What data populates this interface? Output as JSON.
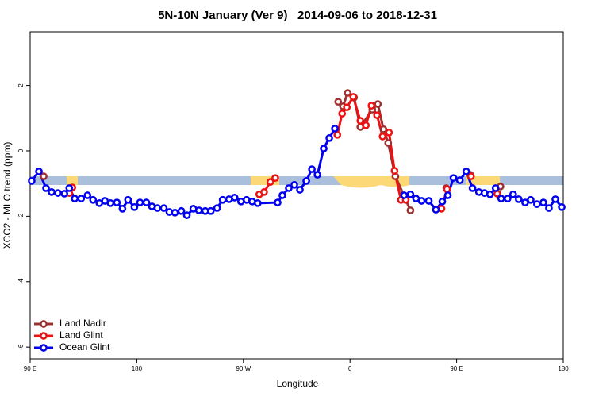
{
  "chart_data": {
    "type": "line",
    "title": "5N-10N January (Ver 9)   2014-09-06 to 2018-12-31",
    "x_label": "Longitude",
    "y_label": "XCO2 - MLO trend (ppm)",
    "xlim": [
      -270,
      180
    ],
    "ylim": [
      -6.36,
      3.64
    ],
    "xticks": [
      {
        "value": -270,
        "label": "90 E"
      },
      {
        "value": -180,
        "label": "180"
      },
      {
        "value": -90,
        "label": "90 W"
      },
      0,
      {
        "value": 90,
        "label": "90 E"
      },
      180
    ],
    "yticks": [
      -6,
      -4,
      -2,
      0,
      2
    ],
    "legend": "bottom-left",
    "series": [
      {
        "name": "Land Nadir",
        "color": "#9e3030",
        "x": [
          -258.6,
          -150,
          -10,
          -6,
          -2,
          3.4,
          8.7,
          18.8,
          23.5,
          28.2,
          32.2,
          38.3,
          51,
          65,
          81.3,
          90,
          101.5,
          110,
          127
        ],
        "values": [
          -0.78,
          null,
          1.5,
          1.36,
          1.77,
          1.63,
          0.73,
          1.26,
          1.43,
          0.66,
          0.24,
          -0.78,
          -1.82,
          null,
          -1.14,
          null,
          -0.73,
          null,
          -1.09
        ]
      },
      {
        "name": "Land Glint",
        "color": "#ee1111",
        "x": [
          -237,
          -234.4,
          -150,
          -76.6,
          -72.5,
          -67.2,
          -63.1,
          -30,
          -10.7,
          -6.7,
          -2.7,
          2.7,
          8.7,
          13.4,
          18.1,
          22.8,
          27.5,
          32.9,
          37.6,
          43,
          47,
          60,
          77.2,
          81.9,
          90,
          102.1,
          110,
          124.3
        ],
        "values": [
          -1.29,
          -1.12,
          null,
          -1.33,
          -1.26,
          -0.95,
          -0.83,
          null,
          0.49,
          1.14,
          1.33,
          1.65,
          0.92,
          0.78,
          1.38,
          1.09,
          0.44,
          0.56,
          -0.61,
          -1.5,
          -1.5,
          null,
          -1.77,
          -1.17,
          null,
          -0.78,
          null,
          -1.31
        ]
      },
      {
        "name": "Ocean Glint",
        "color": "#0000ee",
        "x": [
          -268.7,
          -262.6,
          -256.6,
          -251.9,
          -246.5,
          -241.1,
          -237,
          -232.4,
          -227,
          -221.6,
          -216.9,
          -211.6,
          -206.9,
          -202.2,
          -196.8,
          -192.1,
          -187.4,
          -182,
          -177.3,
          -171.9,
          -167.2,
          -162.5,
          -157.2,
          -152.5,
          -147.8,
          -142.4,
          -137.7,
          -132.3,
          -127.6,
          -122.2,
          -117.5,
          -112.2,
          -107.5,
          -102.1,
          -97.4,
          -92,
          -87.3,
          -82.6,
          -77.9,
          -61.1,
          -57.1,
          -51.7,
          -47,
          -42.3,
          -36.9,
          -32.2,
          -27.5,
          -22.2,
          -17.5,
          -12.8,
          16,
          45.7,
          51,
          55.7,
          60.4,
          66.5,
          72.5,
          77.9,
          82.6,
          87.3,
          92.7,
          98.1,
          103.4,
          108.8,
          113.5,
          118.2,
          122.9,
          127.6,
          133,
          137.7,
          142.4,
          147.8,
          152.5,
          157.8,
          163.2,
          167.9,
          173.3,
          178.7
        ],
        "values": [
          -0.92,
          -0.63,
          -1.14,
          -1.26,
          -1.29,
          -1.31,
          -1.14,
          -1.46,
          -1.46,
          -1.36,
          -1.5,
          -1.6,
          -1.53,
          -1.6,
          -1.58,
          -1.77,
          -1.5,
          -1.72,
          -1.58,
          -1.58,
          -1.7,
          -1.75,
          -1.75,
          -1.87,
          -1.89,
          -1.84,
          -1.97,
          -1.77,
          -1.82,
          -1.84,
          -1.84,
          -1.75,
          -1.5,
          -1.48,
          -1.43,
          -1.55,
          -1.5,
          -1.55,
          -1.6,
          -1.58,
          -1.36,
          -1.14,
          -1.04,
          -1.19,
          -0.92,
          -0.56,
          -0.73,
          0.07,
          0.39,
          0.68,
          null,
          -1.36,
          -1.33,
          -1.46,
          -1.53,
          -1.53,
          -1.8,
          -1.55,
          -1.36,
          -0.83,
          -0.9,
          -0.63,
          -1.14,
          -1.26,
          -1.29,
          -1.33,
          -1.14,
          -1.46,
          -1.46,
          -1.33,
          -1.48,
          -1.58,
          -1.5,
          -1.63,
          -1.58,
          -1.75,
          -1.48,
          -1.72
        ]
      }
    ]
  }
}
